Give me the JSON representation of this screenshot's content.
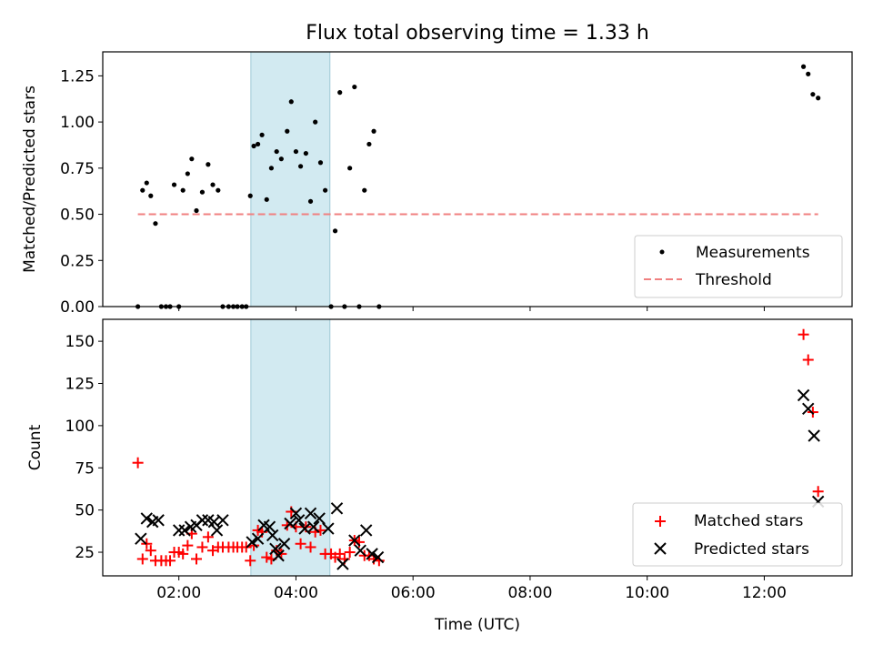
{
  "chart_data": [
    {
      "type": "scatter",
      "title": "Flux total observing time = 1.33 h",
      "xlabel": "",
      "ylabel": "Matched/Predicted stars",
      "xlim": [
        0.7,
        13.5
      ],
      "ylim": [
        0,
        1.38
      ],
      "yticks": [
        0.0,
        0.25,
        0.5,
        0.75,
        1.0,
        1.25
      ],
      "ytick_labels": [
        "0.00",
        "0.25",
        "0.50",
        "0.75",
        "1.00",
        "1.25"
      ],
      "shaded_region": {
        "x0": 3.23,
        "x1": 4.58,
        "color": "#add8e6"
      },
      "legend_position": "lower-right",
      "series": [
        {
          "name": "Measurements",
          "kind": "scatter-dot",
          "color": "#000000",
          "x": [
            1.3,
            1.38,
            1.45,
            1.52,
            1.6,
            1.7,
            1.78,
            1.85,
            1.92,
            2.0,
            2.07,
            2.15,
            2.22,
            2.3,
            2.4,
            2.5,
            2.58,
            2.67,
            2.75,
            2.85,
            2.93,
            3.0,
            3.08,
            3.15,
            3.22,
            3.28,
            3.35,
            3.42,
            3.5,
            3.58,
            3.67,
            3.75,
            3.85,
            3.92,
            4.0,
            4.08,
            4.17,
            4.25,
            4.33,
            4.42,
            4.5,
            4.6,
            4.67,
            4.75,
            4.83,
            4.92,
            5.0,
            5.08,
            5.17,
            5.25,
            5.33,
            5.42,
            12.67,
            12.75,
            12.83,
            12.92
          ],
          "y": [
            0.0,
            0.63,
            0.67,
            0.6,
            0.45,
            0.0,
            0.0,
            0.0,
            0.66,
            0.0,
            0.63,
            0.72,
            0.8,
            0.52,
            0.62,
            0.77,
            0.66,
            0.63,
            0.0,
            0.0,
            0.0,
            0.0,
            0.0,
            0.0,
            0.6,
            0.87,
            0.88,
            0.93,
            0.58,
            0.75,
            0.84,
            0.8,
            0.95,
            1.11,
            0.84,
            0.76,
            0.83,
            0.57,
            1.0,
            0.78,
            0.63,
            0.0,
            0.41,
            1.16,
            0.0,
            0.75,
            1.19,
            0.0,
            0.63,
            0.88,
            0.95,
            0.0,
            1.3,
            1.26,
            1.15,
            1.13
          ]
        },
        {
          "name": "Threshold",
          "kind": "dashed-line",
          "color": "#f08080",
          "x": [
            1.3,
            12.92
          ],
          "y": [
            0.5,
            0.5
          ]
        }
      ]
    },
    {
      "type": "scatter",
      "title": "",
      "xlabel": "Time (UTC)",
      "ylabel": "Count",
      "xlim": [
        0.7,
        13.5
      ],
      "ylim": [
        11,
        163
      ],
      "yticks": [
        25,
        50,
        75,
        100,
        125,
        150
      ],
      "ytick_labels": [
        "25",
        "50",
        "75",
        "100",
        "125",
        "150"
      ],
      "xticks": [
        2,
        4,
        6,
        8,
        10,
        12
      ],
      "xtick_labels": [
        "02:00",
        "04:00",
        "06:00",
        "08:00",
        "10:00",
        "12:00"
      ],
      "shaded_region": {
        "x0": 3.23,
        "x1": 4.58,
        "color": "#add8e6"
      },
      "legend_position": "lower-right",
      "series": [
        {
          "name": "Matched stars",
          "kind": "plus",
          "color": "#ff0000",
          "x": [
            1.3,
            1.38,
            1.45,
            1.52,
            1.6,
            1.7,
            1.78,
            1.85,
            1.92,
            2.0,
            2.07,
            2.15,
            2.22,
            2.3,
            2.4,
            2.5,
            2.58,
            2.67,
            2.75,
            2.85,
            2.93,
            3.0,
            3.08,
            3.15,
            3.22,
            3.28,
            3.35,
            3.42,
            3.5,
            3.58,
            3.67,
            3.75,
            3.85,
            3.92,
            4.0,
            4.08,
            4.17,
            4.25,
            4.33,
            4.42,
            4.5,
            4.6,
            4.67,
            4.75,
            4.83,
            4.92,
            5.0,
            5.08,
            5.17,
            5.25,
            5.33,
            5.42,
            12.67,
            12.75,
            12.83,
            12.92
          ],
          "y": [
            78,
            21,
            30,
            26,
            20,
            20,
            20,
            20,
            25,
            25,
            24,
            29,
            36,
            21,
            28,
            34,
            26,
            28,
            28,
            28,
            28,
            28,
            28,
            28,
            20,
            29,
            38,
            37,
            22,
            21,
            26,
            24,
            41,
            49,
            40,
            30,
            40,
            28,
            37,
            38,
            24,
            24,
            22,
            24,
            21,
            25,
            32,
            31,
            23,
            23,
            21,
            20,
            154,
            139,
            108,
            61
          ]
        },
        {
          "name": "Predicted stars",
          "kind": "cross",
          "color": "#000000",
          "x": [
            1.35,
            1.45,
            1.55,
            1.65,
            2.0,
            2.1,
            2.2,
            2.3,
            2.4,
            2.5,
            2.6,
            2.65,
            2.75,
            3.25,
            3.35,
            3.45,
            3.55,
            3.6,
            3.65,
            3.7,
            3.8,
            3.9,
            4.0,
            4.05,
            4.15,
            4.25,
            4.3,
            4.4,
            4.55,
            4.7,
            4.8,
            5.0,
            5.1,
            5.2,
            5.3,
            5.4,
            12.67,
            12.75,
            12.85,
            12.92
          ],
          "y": [
            33,
            45,
            43,
            44,
            38,
            38,
            40,
            41,
            44,
            44,
            43,
            38,
            44,
            31,
            33,
            41,
            40,
            35,
            27,
            23,
            30,
            42,
            48,
            44,
            39,
            48,
            40,
            45,
            39,
            51,
            18,
            32,
            26,
            38,
            24,
            22,
            118,
            110,
            94,
            55
          ]
        }
      ]
    }
  ]
}
